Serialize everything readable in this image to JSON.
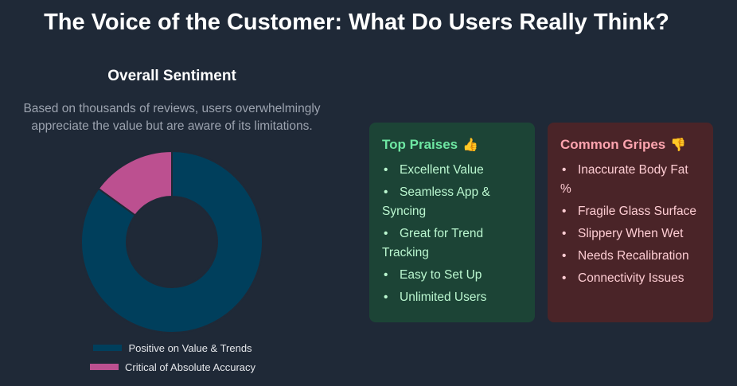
{
  "header": {
    "title": "The Voice of the Customer: What Do Users Really Think?"
  },
  "sentiment": {
    "title": "Overall Sentiment",
    "description": "Based on thousands of reviews, users overwhelmingly appreciate the value but are aware of its limitations."
  },
  "chart_data": {
    "type": "pie",
    "variant": "donut",
    "categories": [
      "Positive on Value & Trends",
      "Critical of Absolute Accuracy"
    ],
    "values": [
      85,
      15
    ],
    "colors": [
      "#003f5c",
      "#bc5090"
    ],
    "legend_position": "bottom"
  },
  "praises": {
    "heading": "Top Praises",
    "icon": "thumbs-up-icon",
    "emoji": "👍",
    "items": [
      "Excellent Value",
      "Seamless App & Syncing",
      "Great for Trend Tracking",
      "Easy to Set Up",
      "Unlimited Users"
    ]
  },
  "gripes": {
    "heading": "Common Gripes",
    "icon": "thumbs-down-icon",
    "emoji": "👎",
    "items": [
      "Inaccurate Body Fat %",
      "Fragile Glass Surface",
      "Slippery When Wet",
      "Needs Recalibration",
      "Connectivity Issues"
    ]
  },
  "bullet": "•"
}
